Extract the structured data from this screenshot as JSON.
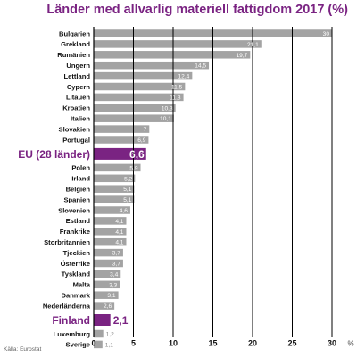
{
  "chart_data": {
    "type": "bar",
    "orientation": "horizontal",
    "title": "Länder med allvarlig materiell fattigdom 2017 (%)",
    "source": "Källa: Eurostat",
    "unit_label": "%",
    "xlim": [
      0,
      30
    ],
    "xticks": [
      0,
      5,
      10,
      15,
      20,
      25,
      30
    ],
    "grid": true,
    "categories": [
      "Bulgarien",
      "Grekland",
      "Rumänien",
      "Ungern",
      "Lettland",
      "Cypern",
      "Litauen",
      "Kroatien",
      "Italien",
      "Slovakien",
      "Portugal",
      "EU (28 länder)",
      "Polen",
      "Irland",
      "Belgien",
      "Spanien",
      "Slovenien",
      "Estland",
      "Frankrike",
      "Storbritannien",
      "Tjeckien",
      "Österrike",
      "Tyskland",
      "Malta",
      "Danmark",
      "Nederländerna",
      "Finland",
      "Luxemburg",
      "Sverige"
    ],
    "value_labels": [
      "30",
      "21,1",
      "19,7",
      "14,5",
      "12,4",
      "11,5",
      "11,3",
      "10,3",
      "10,1",
      "7",
      "6,9",
      "6,6",
      "5,9",
      "5,2",
      "5,1",
      "5,1",
      "4,6",
      "4,1",
      "4,1",
      "4,1",
      "3,7",
      "3,7",
      "3,4",
      "3,3",
      "3,1",
      "2,6",
      "2,1",
      "1,2",
      "1,1"
    ],
    "values": [
      30,
      21.1,
      19.7,
      14.5,
      12.4,
      11.5,
      11.3,
      10.3,
      10.1,
      7,
      6.9,
      6.6,
      5.9,
      5.2,
      5.1,
      5.1,
      4.6,
      4.1,
      4.1,
      4.1,
      3.7,
      3.7,
      3.4,
      3.3,
      3.1,
      2.6,
      2.1,
      1.2,
      1.1
    ],
    "highlighted": [
      "EU (28 länder)",
      "Finland"
    ],
    "colors": {
      "bar": "#a3a3a3",
      "highlight": "#7a2382",
      "grid": "#000000",
      "title": "#7a2382",
      "value_label": "#ffffff",
      "small_value_label": "#8a8a8a"
    }
  }
}
